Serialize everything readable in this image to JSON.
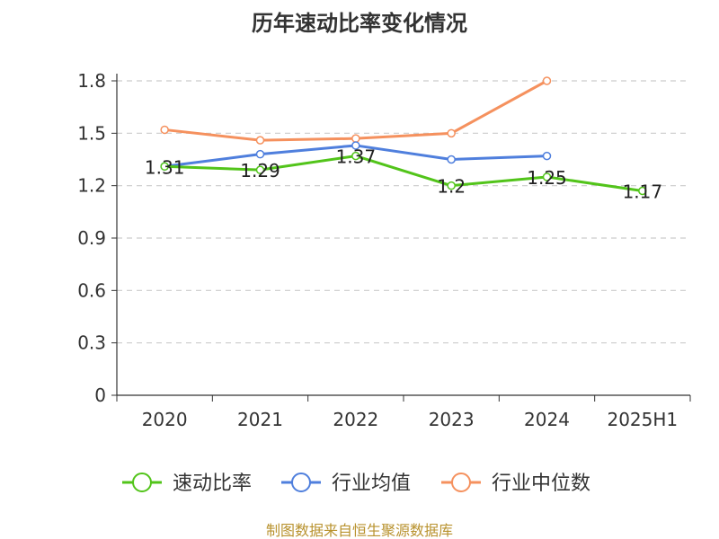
{
  "chart_data": {
    "type": "line",
    "title": "历年速动比率变化情况",
    "categories": [
      "2020",
      "2021",
      "2022",
      "2023",
      "2024",
      "2025H1"
    ],
    "ylim": [
      0,
      1.8
    ],
    "yticks": [
      "0",
      "0.3",
      "0.6",
      "0.9",
      "1.2",
      "1.5",
      "1.8"
    ],
    "grid": true,
    "legend_position": "bottom",
    "series": [
      {
        "name": "速动比率",
        "color": "#52c41a",
        "values": [
          1.31,
          1.29,
          1.37,
          1.2,
          1.25,
          1.17
        ],
        "labels": [
          "1.31",
          "1.29",
          "1.37",
          "1.2",
          "1.25",
          "1.17"
        ]
      },
      {
        "name": "行业均值",
        "color": "#4f7fdd",
        "values": [
          1.31,
          1.38,
          1.43,
          1.35,
          1.37,
          null
        ]
      },
      {
        "name": "行业中位数",
        "color": "#f5915e",
        "values": [
          1.52,
          1.46,
          1.47,
          1.5,
          1.8,
          null
        ]
      }
    ],
    "source": "制图数据来自恒生聚源数据库"
  }
}
